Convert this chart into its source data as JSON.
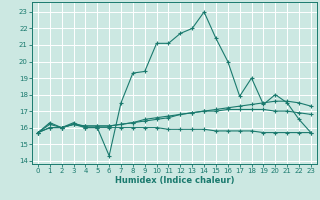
{
  "xlabel": "Humidex (Indice chaleur)",
  "xlim": [
    -0.5,
    23.5
  ],
  "ylim": [
    13.8,
    23.6
  ],
  "yticks": [
    14,
    15,
    16,
    17,
    18,
    19,
    20,
    21,
    22,
    23
  ],
  "xticks": [
    0,
    1,
    2,
    3,
    4,
    5,
    6,
    7,
    8,
    9,
    10,
    11,
    12,
    13,
    14,
    15,
    16,
    17,
    18,
    19,
    20,
    21,
    22,
    23
  ],
  "bg_color": "#cce8e2",
  "grid_color": "#b0d8d0",
  "line_color": "#1a7a6e",
  "series": [
    {
      "x": [
        0,
        1,
        2,
        3,
        4,
        5,
        6,
        7,
        8,
        9,
        10,
        11,
        12,
        13,
        14,
        15,
        16,
        17,
        18,
        19,
        20,
        21,
        22,
        23
      ],
      "y": [
        15.7,
        16.3,
        16.0,
        16.3,
        16.0,
        16.0,
        14.3,
        17.5,
        19.3,
        19.4,
        21.1,
        21.1,
        21.7,
        22.0,
        23.0,
        21.4,
        20.0,
        17.9,
        19.0,
        17.4,
        18.0,
        17.5,
        16.5,
        15.7
      ]
    },
    {
      "x": [
        0,
        1,
        2,
        3,
        4,
        5,
        6,
        7,
        8,
        9,
        10,
        11,
        12,
        13,
        14,
        15,
        16,
        17,
        18,
        19,
        20,
        21,
        22,
        23
      ],
      "y": [
        15.7,
        16.0,
        16.0,
        16.2,
        16.1,
        16.1,
        16.1,
        16.2,
        16.3,
        16.4,
        16.5,
        16.6,
        16.8,
        16.9,
        17.0,
        17.1,
        17.2,
        17.3,
        17.4,
        17.5,
        17.6,
        17.6,
        17.5,
        17.3
      ]
    },
    {
      "x": [
        0,
        1,
        2,
        3,
        4,
        5,
        6,
        7,
        8,
        9,
        10,
        11,
        12,
        13,
        14,
        15,
        16,
        17,
        18,
        19,
        20,
        21,
        22,
        23
      ],
      "y": [
        15.7,
        16.0,
        16.0,
        16.2,
        16.1,
        16.1,
        16.1,
        16.2,
        16.3,
        16.5,
        16.6,
        16.7,
        16.8,
        16.9,
        17.0,
        17.0,
        17.1,
        17.1,
        17.1,
        17.1,
        17.0,
        17.0,
        16.9,
        16.8
      ]
    },
    {
      "x": [
        0,
        1,
        2,
        3,
        4,
        5,
        6,
        7,
        8,
        9,
        10,
        11,
        12,
        13,
        14,
        15,
        16,
        17,
        18,
        19,
        20,
        21,
        22,
        23
      ],
      "y": [
        15.7,
        16.2,
        16.0,
        16.2,
        16.0,
        16.0,
        16.0,
        16.0,
        16.0,
        16.0,
        16.0,
        15.9,
        15.9,
        15.9,
        15.9,
        15.8,
        15.8,
        15.8,
        15.8,
        15.7,
        15.7,
        15.7,
        15.7,
        15.7
      ]
    }
  ]
}
